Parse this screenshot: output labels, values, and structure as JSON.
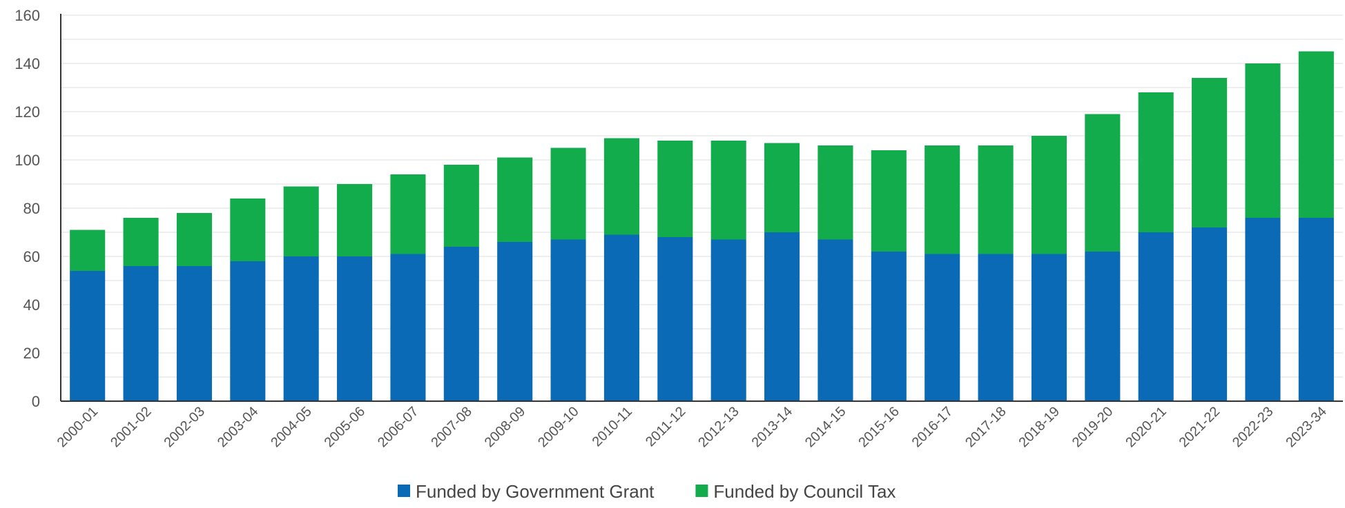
{
  "chart_data": {
    "type": "bar",
    "stacked": true,
    "categories": [
      "2000-01",
      "2001-02",
      "2002-03",
      "2003-04",
      "2004-05",
      "2005-06",
      "2006-07",
      "2007-08",
      "2008-09",
      "2009-10",
      "2010-11",
      "2011-12",
      "2012-13",
      "2013-14",
      "2014-15",
      "2015-16",
      "2016-17",
      "2017-18",
      "2018-19",
      "2019-20",
      "2020-21",
      "2021-22",
      "2022-23",
      "2023-34"
    ],
    "series": [
      {
        "name": "Funded by Government Grant",
        "color": "#0a6ab6",
        "values": [
          54,
          56,
          56,
          58,
          60,
          60,
          61,
          64,
          66,
          67,
          69,
          68,
          67,
          70,
          67,
          62,
          61,
          61,
          61,
          62,
          70,
          72,
          76,
          76
        ]
      },
      {
        "name": "Funded by Council Tax",
        "color": "#12ac4c",
        "values": [
          17,
          20,
          22,
          26,
          29,
          30,
          33,
          34,
          35,
          38,
          40,
          40,
          41,
          37,
          39,
          42,
          45,
          45,
          49,
          57,
          58,
          62,
          64,
          69
        ]
      }
    ],
    "title": "",
    "xlabel": "",
    "ylabel": "",
    "ylim": [
      0,
      160
    ],
    "yticks": [
      0,
      20,
      40,
      60,
      80,
      100,
      120,
      140,
      160
    ],
    "grid": true,
    "legend_position": "bottom"
  }
}
